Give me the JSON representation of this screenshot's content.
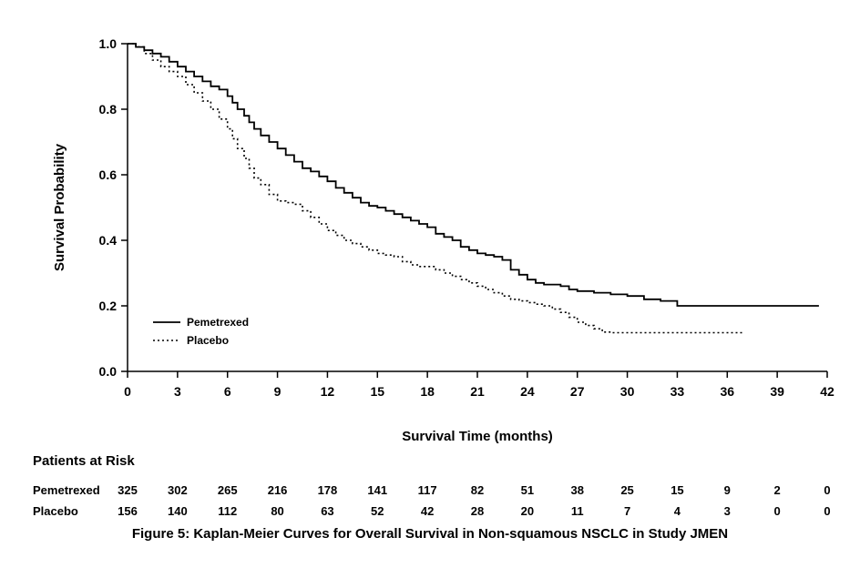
{
  "chart_data": {
    "type": "line",
    "subtype": "kaplan-meier-step",
    "title": "",
    "xlabel": "Survival Time (months)",
    "ylabel": "Survival Probability",
    "xlim": [
      0,
      42
    ],
    "ylim": [
      0,
      1
    ],
    "grid": false,
    "legend_position": "inside-lower-left",
    "x_ticks": {
      "values": [
        0,
        3,
        6,
        9,
        12,
        15,
        18,
        21,
        24,
        27,
        30,
        33,
        36,
        39,
        42
      ],
      "labels": [
        "0",
        "3",
        "6",
        "9",
        "12",
        "15",
        "18",
        "21",
        "24",
        "27",
        "30",
        "33",
        "36",
        "39",
        "42"
      ]
    },
    "y_ticks": {
      "values": [
        0.0,
        0.2,
        0.4,
        0.6,
        0.8,
        1.0
      ],
      "labels": [
        "0.0",
        "0.2",
        "0.4",
        "0.6",
        "0.8",
        "1.0"
      ]
    },
    "series": [
      {
        "name": "Pemetrexed",
        "line_style": "solid",
        "color": "#000000",
        "points": [
          [
            0,
            1.0
          ],
          [
            0.5,
            0.99
          ],
          [
            1,
            0.98
          ],
          [
            1.5,
            0.97
          ],
          [
            2,
            0.96
          ],
          [
            2.5,
            0.945
          ],
          [
            3,
            0.93
          ],
          [
            3.5,
            0.915
          ],
          [
            4,
            0.9
          ],
          [
            4.5,
            0.885
          ],
          [
            5,
            0.87
          ],
          [
            5.5,
            0.86
          ],
          [
            6,
            0.84
          ],
          [
            6.3,
            0.82
          ],
          [
            6.6,
            0.8
          ],
          [
            7,
            0.78
          ],
          [
            7.3,
            0.76
          ],
          [
            7.6,
            0.74
          ],
          [
            8,
            0.72
          ],
          [
            8.5,
            0.7
          ],
          [
            9,
            0.68
          ],
          [
            9.5,
            0.66
          ],
          [
            10,
            0.64
          ],
          [
            10.5,
            0.62
          ],
          [
            11,
            0.61
          ],
          [
            11.5,
            0.595
          ],
          [
            12,
            0.58
          ],
          [
            12.5,
            0.56
          ],
          [
            13,
            0.545
          ],
          [
            13.5,
            0.53
          ],
          [
            14,
            0.515
          ],
          [
            14.5,
            0.505
          ],
          [
            15,
            0.5
          ],
          [
            15.5,
            0.49
          ],
          [
            16,
            0.48
          ],
          [
            16.5,
            0.47
          ],
          [
            17,
            0.46
          ],
          [
            17.5,
            0.45
          ],
          [
            18,
            0.44
          ],
          [
            18.5,
            0.42
          ],
          [
            19,
            0.41
          ],
          [
            19.5,
            0.4
          ],
          [
            20,
            0.38
          ],
          [
            20.5,
            0.37
          ],
          [
            21,
            0.36
          ],
          [
            21.5,
            0.355
          ],
          [
            22,
            0.35
          ],
          [
            22.5,
            0.34
          ],
          [
            23,
            0.31
          ],
          [
            23.5,
            0.295
          ],
          [
            24,
            0.28
          ],
          [
            24.5,
            0.27
          ],
          [
            25,
            0.265
          ],
          [
            26,
            0.26
          ],
          [
            26.5,
            0.25
          ],
          [
            27,
            0.245
          ],
          [
            28,
            0.24
          ],
          [
            29,
            0.235
          ],
          [
            30,
            0.23
          ],
          [
            31,
            0.22
          ],
          [
            32,
            0.215
          ],
          [
            33,
            0.2
          ],
          [
            41.5,
            0.2
          ]
        ]
      },
      {
        "name": "Placebo",
        "line_style": "dotted",
        "color": "#000000",
        "points": [
          [
            0,
            1.0
          ],
          [
            0.5,
            0.99
          ],
          [
            1,
            0.97
          ],
          [
            1.5,
            0.95
          ],
          [
            2,
            0.93
          ],
          [
            2.5,
            0.915
          ],
          [
            3,
            0.9
          ],
          [
            3.5,
            0.875
          ],
          [
            4,
            0.85
          ],
          [
            4.5,
            0.825
          ],
          [
            5,
            0.8
          ],
          [
            5.5,
            0.77
          ],
          [
            6,
            0.74
          ],
          [
            6.3,
            0.71
          ],
          [
            6.6,
            0.68
          ],
          [
            7,
            0.65
          ],
          [
            7.3,
            0.62
          ],
          [
            7.6,
            0.59
          ],
          [
            8,
            0.57
          ],
          [
            8.5,
            0.54
          ],
          [
            9,
            0.52
          ],
          [
            9.5,
            0.515
          ],
          [
            10,
            0.51
          ],
          [
            10.5,
            0.49
          ],
          [
            11,
            0.47
          ],
          [
            11.5,
            0.45
          ],
          [
            12,
            0.43
          ],
          [
            12.5,
            0.415
          ],
          [
            13,
            0.4
          ],
          [
            13.5,
            0.39
          ],
          [
            14,
            0.38
          ],
          [
            14.5,
            0.37
          ],
          [
            15,
            0.36
          ],
          [
            15.5,
            0.355
          ],
          [
            16,
            0.35
          ],
          [
            16.5,
            0.335
          ],
          [
            17,
            0.325
          ],
          [
            17.5,
            0.32
          ],
          [
            18,
            0.32
          ],
          [
            18.5,
            0.31
          ],
          [
            19,
            0.3
          ],
          [
            19.5,
            0.29
          ],
          [
            20,
            0.28
          ],
          [
            20.5,
            0.27
          ],
          [
            21,
            0.26
          ],
          [
            21.5,
            0.25
          ],
          [
            22,
            0.24
          ],
          [
            22.5,
            0.23
          ],
          [
            23,
            0.22
          ],
          [
            23.5,
            0.215
          ],
          [
            24,
            0.21
          ],
          [
            24.5,
            0.205
          ],
          [
            25,
            0.2
          ],
          [
            25.5,
            0.19
          ],
          [
            26,
            0.18
          ],
          [
            26.5,
            0.165
          ],
          [
            27,
            0.15
          ],
          [
            27.5,
            0.14
          ],
          [
            28,
            0.13
          ],
          [
            28.5,
            0.12
          ],
          [
            29,
            0.118
          ],
          [
            37,
            0.118
          ]
        ]
      }
    ],
    "risk_table": {
      "title": "Patients at Risk",
      "time_points": [
        0,
        3,
        6,
        9,
        12,
        15,
        18,
        21,
        24,
        27,
        30,
        33,
        36,
        39,
        42
      ],
      "rows": [
        {
          "label": "Pemetrexed",
          "counts": [
            325,
            302,
            265,
            216,
            178,
            141,
            117,
            82,
            51,
            38,
            25,
            15,
            9,
            2,
            0
          ]
        },
        {
          "label": "Placebo",
          "counts": [
            156,
            140,
            112,
            80,
            63,
            52,
            42,
            28,
            20,
            11,
            7,
            4,
            3,
            0,
            0
          ]
        }
      ]
    }
  },
  "caption": "Figure 5: Kaplan-Meier Curves for Overall Survival in Non-squamous NSCLC in Study JMEN",
  "colors": {
    "foreground": "#000000",
    "background": "#ffffff"
  }
}
